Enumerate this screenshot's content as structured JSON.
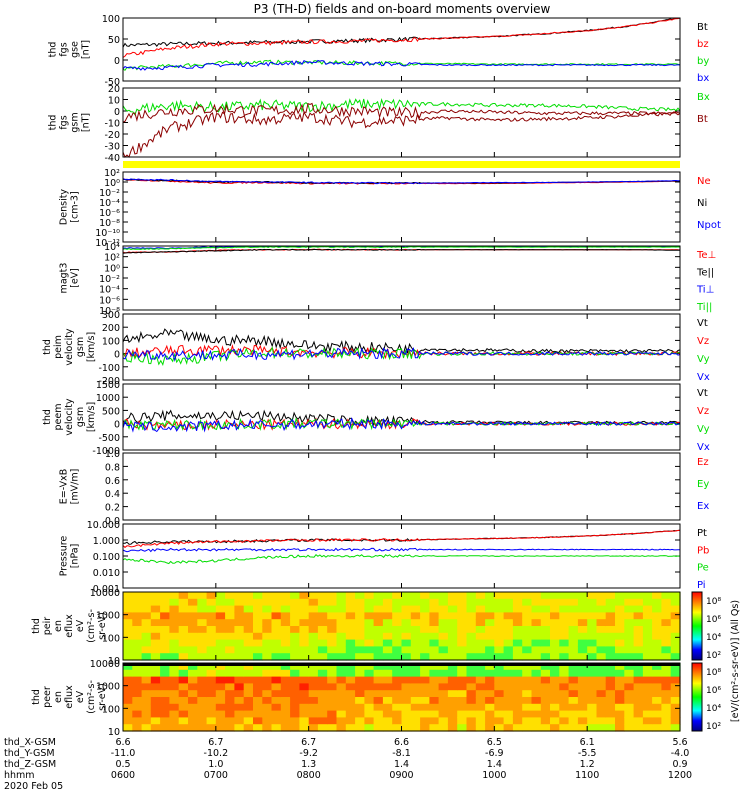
{
  "title": "P3 (TH-D) fields and on-board moments overview",
  "date_label": "2020 Feb 05",
  "colors": {
    "black": "#000000",
    "red": "#ff0000",
    "green": "#00dd00",
    "blue": "#0000ff",
    "darkred": "#8b0000",
    "yellow": "#ffff00"
  },
  "panels": [
    {
      "id": "fgs-gse",
      "label": [
        "thd",
        "fgs",
        "gse",
        "[nT]"
      ],
      "ticks": [
        "100",
        "50",
        "0",
        "-50"
      ],
      "legend": [
        {
          "text": "Bt",
          "color": "black"
        },
        {
          "text": "bz",
          "color": "red"
        },
        {
          "text": "by",
          "color": "green"
        },
        {
          "text": "bx",
          "color": "blue"
        }
      ]
    },
    {
      "id": "fgs-gsm",
      "label": [
        "thd",
        "fgs",
        "gsm",
        "[nT]"
      ],
      "ticks": [
        "20",
        "10",
        "0",
        "-10",
        "-20",
        "-30",
        "-40"
      ],
      "legend": [
        {
          "text": "Bx",
          "color": "green"
        },
        {
          "text": "Bt",
          "color": "darkred"
        }
      ]
    },
    {
      "id": "density",
      "label": [
        "Density",
        "[cm-3]"
      ],
      "ticks": [
        "10²",
        "10⁰",
        "10⁻²",
        "10⁻⁴",
        "10⁻⁶",
        "10⁻⁸",
        "10⁻¹⁰",
        "10⁻¹²"
      ],
      "legend": [
        {
          "text": "Ne",
          "color": "red"
        },
        {
          "text": "Ni",
          "color": "black"
        },
        {
          "text": "Npot",
          "color": "blue"
        }
      ]
    },
    {
      "id": "temperature",
      "label": [
        "magt3",
        "[eV]"
      ],
      "ticks": [
        "10⁴",
        "10²",
        "10⁰",
        "10⁻²",
        "10⁻⁴",
        "10⁻⁶",
        "10⁻⁸"
      ],
      "legend": [
        {
          "text": "Te⊥",
          "color": "red"
        },
        {
          "text": "Te||",
          "color": "black"
        },
        {
          "text": "Ti⊥",
          "color": "blue"
        },
        {
          "text": "Ti||",
          "color": "green"
        }
      ]
    },
    {
      "id": "peim-velocity",
      "label": [
        "thd",
        "peim",
        "velocity",
        "gsm",
        "[km/s]"
      ],
      "ticks": [
        "300",
        "200",
        "100",
        "0",
        "-100",
        "-200"
      ],
      "legend": [
        {
          "text": "Vt",
          "color": "black"
        },
        {
          "text": "Vz",
          "color": "red"
        },
        {
          "text": "Vy",
          "color": "green"
        },
        {
          "text": "Vx",
          "color": "blue"
        }
      ]
    },
    {
      "id": "peem-velocity",
      "label": [
        "thd",
        "peem",
        "velocity",
        "gsm",
        "[km/s]"
      ],
      "ticks": [
        "1500",
        "1000",
        "500",
        "0",
        "-500",
        "-1000"
      ],
      "legend": [
        {
          "text": "Vt",
          "color": "black"
        },
        {
          "text": "Vz",
          "color": "red"
        },
        {
          "text": "Vy",
          "color": "green"
        },
        {
          "text": "Vx",
          "color": "blue"
        }
      ]
    },
    {
      "id": "efield",
      "label": [
        "E=-VxB",
        "[mV/m]"
      ],
      "ticks": [
        "1.0",
        "0.8",
        "0.6",
        "0.4",
        "0.2",
        "0.0"
      ],
      "legend": [
        {
          "text": "Ez",
          "color": "red"
        },
        {
          "text": "Ey",
          "color": "green"
        },
        {
          "text": "Ex",
          "color": "blue"
        }
      ]
    },
    {
      "id": "pressure",
      "label": [
        "Pressure",
        "[nPa]"
      ],
      "ticks": [
        "10.000",
        "1.000",
        "0.100",
        "0.010",
        "0.001"
      ],
      "legend": [
        {
          "text": "Pt",
          "color": "black"
        },
        {
          "text": "Pb",
          "color": "red"
        },
        {
          "text": "Pe",
          "color": "green"
        },
        {
          "text": "Pi",
          "color": "blue"
        }
      ]
    },
    {
      "id": "peir-spectrogram",
      "label": [
        "thd",
        "peir",
        "en",
        "eflux",
        "eV",
        "(cm²-s-",
        "sr-eV)"
      ],
      "ticks": [
        "10000",
        "1000",
        "100",
        "10"
      ],
      "legend": []
    },
    {
      "id": "peer-spectrogram",
      "label": [
        "thd",
        "peer",
        "en",
        "eflux",
        "eV",
        "(cm²-s-",
        "sr-eV)"
      ],
      "ticks": [
        "10000",
        "1000",
        "100",
        "10"
      ],
      "legend": []
    }
  ],
  "colorbar": {
    "label": "[eV/(cm²-s-sr-eV)] (All Qs)",
    "upper_ticks": [
      "10⁸",
      "10⁶",
      "10⁴",
      "10²"
    ],
    "lower_ticks": [
      "10⁸",
      "10⁶",
      "10⁴",
      "10²"
    ]
  },
  "chart_data": {
    "type": "line",
    "title": "P3 (TH-D) fields and on-board moments overview",
    "x_time_labels": [
      "0600",
      "0700",
      "0800",
      "0900",
      "1000",
      "1100",
      "1200"
    ],
    "xlim_hours": [
      6.0,
      12.0
    ],
    "ephemeris": [
      {
        "name": "thd_X-GSM",
        "values": [
          "6.6",
          "6.7",
          "6.7",
          "6.6",
          "6.5",
          "6.1",
          "5.6"
        ]
      },
      {
        "name": "thd_Y-GSM",
        "values": [
          "-11.0",
          "-10.2",
          "-9.2",
          "-8.1",
          "-6.9",
          "-5.5",
          "-4.0"
        ]
      },
      {
        "name": "thd_Z-GSM",
        "values": [
          "0.5",
          "1.0",
          "1.3",
          "1.4",
          "1.4",
          "1.2",
          "0.9"
        ]
      },
      {
        "name": "hhmm",
        "values": [
          "0600",
          "0700",
          "0800",
          "0900",
          "1000",
          "1100",
          "1200"
        ]
      }
    ],
    "series_samples": {
      "x_hours": [
        6.0,
        6.5,
        7.0,
        7.5,
        8.0,
        8.5,
        9.0,
        9.5,
        10.0,
        10.5,
        11.0,
        11.5,
        12.0
      ],
      "fgs_gse_nT": {
        "Bt": [
          35,
          38,
          40,
          42,
          44,
          46,
          49,
          52,
          56,
          62,
          70,
          82,
          100
        ],
        "bz": [
          10,
          28,
          38,
          40,
          43,
          45,
          48,
          52,
          56,
          62,
          70,
          82,
          99
        ],
        "by": [
          -20,
          -15,
          -8,
          -5,
          -6,
          -7,
          -8,
          -9,
          -10,
          -10,
          -10,
          -10,
          -10
        ],
        "bx": [
          -20,
          -18,
          -12,
          -10,
          -5,
          -8,
          -10,
          -12,
          -12,
          -12,
          -12,
          -12,
          -12
        ]
      },
      "fgs_gsm_nT": {
        "Bx": [
          0,
          5,
          3,
          5,
          4,
          6,
          6,
          6,
          5,
          5,
          4,
          2,
          1
        ],
        "By": [
          -5,
          0,
          2,
          0,
          2,
          0,
          -2,
          0,
          -1,
          -2,
          -2,
          -2,
          -2
        ],
        "Bz": [
          -40,
          -15,
          -5,
          -8,
          -5,
          -10,
          -8,
          -6,
          -8,
          -7,
          -6,
          -4,
          -2
        ]
      },
      "density_log10": {
        "Ne": [
          0.5,
          0.2,
          -0.2,
          -0.1,
          -0.3,
          -0.3,
          -0.3,
          -0.3,
          -0.3,
          -0.2,
          -0.1,
          0.0,
          0.2
        ],
        "Ni": [
          0.5,
          0.3,
          0.0,
          0.0,
          -0.2,
          -0.2,
          -0.2,
          -0.2,
          -0.2,
          -0.1,
          0.0,
          0.1,
          0.2
        ],
        "Npot": [
          0.6,
          0.4,
          0.1,
          0.0,
          -0.1,
          -0.2,
          -0.2,
          -0.2,
          -0.1,
          -0.1,
          0.0,
          0.1,
          0.3
        ]
      },
      "temperature_log10": {
        "Te_perp": [
          2.8,
          2.9,
          3.2,
          3.3,
          3.3,
          3.3,
          3.3,
          3.3,
          3.3,
          3.3,
          3.3,
          3.3,
          3.3
        ],
        "Te_par": [
          2.7,
          2.9,
          3.1,
          3.3,
          3.3,
          3.3,
          3.3,
          3.3,
          3.3,
          3.3,
          3.3,
          3.3,
          3.2
        ],
        "Ti_perp": [
          3.6,
          3.6,
          3.8,
          3.9,
          3.9,
          3.9,
          3.9,
          3.9,
          3.9,
          3.9,
          3.9,
          3.9,
          3.9
        ],
        "Ti_par": [
          3.4,
          3.5,
          3.7,
          3.8,
          3.8,
          3.8,
          3.8,
          3.8,
          3.8,
          3.8,
          3.8,
          3.8,
          3.8
        ]
      },
      "peim_velocity_kms": {
        "Vt": [
          100,
          150,
          100,
          100,
          60,
          50,
          40,
          30,
          25,
          20,
          20,
          20,
          20
        ],
        "Vz": [
          0,
          20,
          30,
          20,
          10,
          5,
          5,
          0,
          0,
          0,
          0,
          0,
          0
        ],
        "Vy": [
          -20,
          -50,
          -20,
          10,
          0,
          0,
          0,
          0,
          0,
          0,
          0,
          0,
          0
        ],
        "Vx": [
          0,
          -10,
          -10,
          -5,
          0,
          0,
          0,
          0,
          0,
          0,
          0,
          0,
          0
        ]
      },
      "peem_velocity_kms": {
        "Vt": [
          200,
          300,
          300,
          300,
          200,
          100,
          80,
          50,
          40,
          30,
          30,
          30,
          30
        ],
        "Vz": [
          0,
          -100,
          -50,
          -50,
          -20,
          0,
          0,
          0,
          0,
          0,
          0,
          0,
          0
        ],
        "Vy": [
          -50,
          -50,
          -50,
          -20,
          -10,
          0,
          0,
          0,
          0,
          0,
          0,
          0,
          0
        ],
        "Vx": [
          -100,
          -150,
          -80,
          -50,
          -30,
          0,
          0,
          0,
          0,
          0,
          0,
          0,
          0
        ]
      },
      "pressure_log10": {
        "Pt": [
          -0.2,
          -0.1,
          -0.1,
          -0.05,
          0.0,
          0.0,
          0.0,
          0.05,
          0.1,
          0.15,
          0.25,
          0.4,
          0.6
        ],
        "Pb": [
          -0.4,
          -0.2,
          -0.1,
          -0.05,
          0.0,
          0.0,
          0.0,
          0.05,
          0.1,
          0.15,
          0.25,
          0.4,
          0.6
        ],
        "Pe": [
          -1.2,
          -1.4,
          -1.3,
          -1.1,
          -1.0,
          -1.0,
          -1.0,
          -1.0,
          -1.0,
          -1.0,
          -1.0,
          -1.0,
          -1.0
        ],
        "Pi": [
          -0.7,
          -0.6,
          -0.6,
          -0.6,
          -0.6,
          -0.6,
          -0.6,
          -0.6,
          -0.6,
          -0.6,
          -0.6,
          -0.6,
          -0.6
        ]
      }
    }
  }
}
